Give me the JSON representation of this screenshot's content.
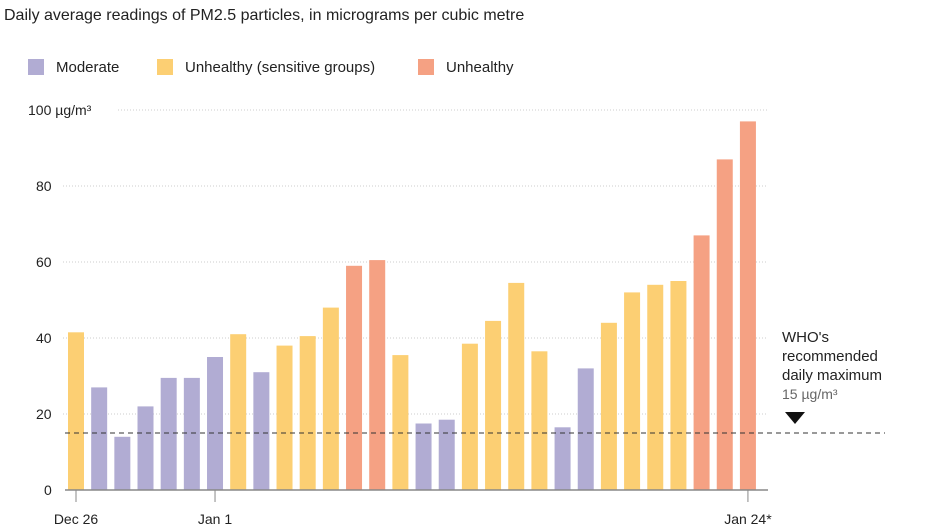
{
  "chart_data": {
    "type": "bar",
    "title": "Daily average readings of PM2.5 particles, in micrograms per cubic metre",
    "ylabel": "µg/m³",
    "ylim": [
      0,
      100
    ],
    "yticks": [
      0,
      20,
      40,
      60,
      80,
      100
    ],
    "ytick_labels": [
      "0",
      "20",
      "40",
      "60",
      "80",
      "100 µg/m³"
    ],
    "grid": true,
    "legend_position": "top-left",
    "legend": [
      {
        "key": "moderate",
        "label": "Moderate",
        "color": "#b1acd3"
      },
      {
        "key": "sensitive",
        "label": "Unhealthy (sensitive groups)",
        "color": "#fccf73"
      },
      {
        "key": "unhealthy",
        "label": "Unhealthy",
        "color": "#f5a183"
      }
    ],
    "xtick_labels": [
      {
        "index": 0,
        "label": "Dec 26"
      },
      {
        "index": 6,
        "label": "Jan 1"
      },
      {
        "index": 29,
        "label": "Jan 24*"
      }
    ],
    "values": [
      41.5,
      27,
      14,
      22,
      29.5,
      29.5,
      35,
      41,
      31,
      38,
      40.5,
      48,
      59,
      60.5,
      35.5,
      17.5,
      18.5,
      38.5,
      44.5,
      54.5,
      36.5,
      16.5,
      32,
      44,
      52,
      54,
      55,
      67,
      87,
      97
    ],
    "categories_level": [
      "sensitive",
      "moderate",
      "moderate",
      "moderate",
      "moderate",
      "moderate",
      "moderate",
      "sensitive",
      "moderate",
      "sensitive",
      "sensitive",
      "sensitive",
      "unhealthy",
      "unhealthy",
      "sensitive",
      "moderate",
      "moderate",
      "sensitive",
      "sensitive",
      "sensitive",
      "sensitive",
      "moderate",
      "moderate",
      "sensitive",
      "sensitive",
      "sensitive",
      "sensitive",
      "unhealthy",
      "unhealthy",
      "unhealthy"
    ],
    "reference_line": {
      "value": 15,
      "label_lines": [
        "WHO's",
        "recommended",
        "daily maximum"
      ],
      "value_label": "15 µg/m³"
    }
  }
}
